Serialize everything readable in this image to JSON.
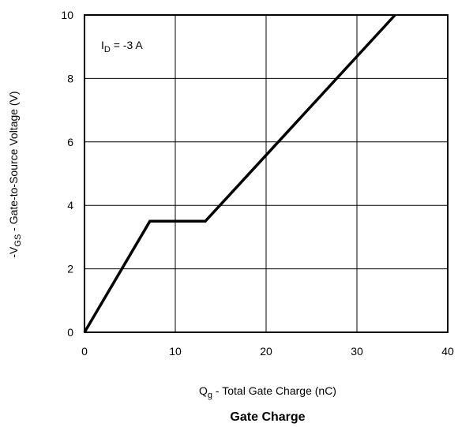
{
  "chart_data": {
    "type": "line",
    "title": "Gate Charge",
    "xlabel": {
      "main": "Q",
      "sub": "g",
      "rest": " - Total Gate Charge (nC)"
    },
    "ylabel": {
      "main": "-V",
      "sub": "GS",
      "rest": " - Gate-to-Source Voltage (V)"
    },
    "xlim": [
      0,
      40
    ],
    "ylim": [
      0,
      10
    ],
    "x_ticks": [
      "0",
      "10",
      "20",
      "30",
      "40"
    ],
    "y_ticks": [
      "0",
      "2",
      "4",
      "6",
      "8",
      "10"
    ],
    "grid": true,
    "annotation": {
      "main": "I",
      "sub": "D",
      "rest": " = -3 A"
    },
    "series": [
      {
        "x": [
          0,
          7.2,
          13.3,
          34.2
        ],
        "y": [
          0,
          3.5,
          3.5,
          10
        ]
      }
    ]
  }
}
